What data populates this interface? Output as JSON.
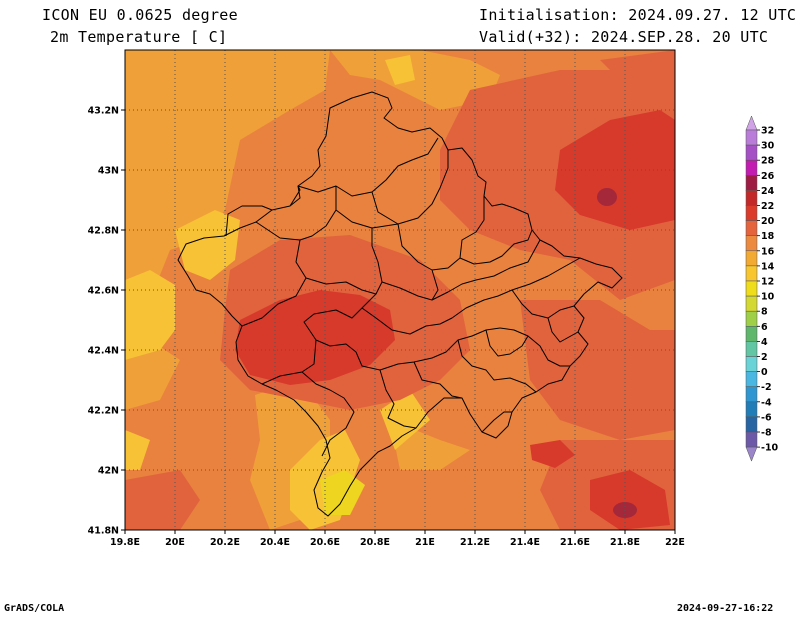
{
  "header": {
    "model": "ICON EU 0.0625 degree",
    "variable": "2m Temperature [ C]",
    "initialisation": "Initialisation: 2024.09.27. 12 UTC",
    "valid": "Valid(+32): 2024.SEP.28. 20 UTC"
  },
  "footer": {
    "left": "GrADS/COLA",
    "right": "2024-09-27-16:22"
  },
  "axes": {
    "x_ticks": [
      "19.8E",
      "20E",
      "20.2E",
      "20.4E",
      "20.6E",
      "20.8E",
      "21E",
      "21.2E",
      "21.4E",
      "21.6E",
      "21.8E",
      "22E"
    ],
    "y_ticks": [
      "43.2N",
      "43N",
      "42.8N",
      "42.6N",
      "42.4N",
      "42.2N",
      "42N",
      "41.8N"
    ]
  },
  "colorbar": {
    "labels": [
      "32",
      "30",
      "28",
      "26",
      "24",
      "22",
      "20",
      "18",
      "16",
      "14",
      "12",
      "10",
      "8",
      "6",
      "4",
      "2",
      "0",
      "-2",
      "-4",
      "-6",
      "-8",
      "-10"
    ],
    "colors": [
      "#cfa3e6",
      "#b97cd8",
      "#a650c6",
      "#c21cb0",
      "#9f1c44",
      "#c42929",
      "#db3b2b",
      "#e5643e",
      "#ec8a40",
      "#f3aa33",
      "#f8c730",
      "#efdd1b",
      "#d4d832",
      "#9ecf46",
      "#5fb76c",
      "#62c6a5",
      "#6ad3d8",
      "#4ab7e2",
      "#2f96d1",
      "#217db8",
      "#2764a4",
      "#6c5aa8",
      "#9b86c9"
    ]
  },
  "colors": {
    "background": "#e9823f",
    "border": "#000000",
    "grid": "#444444"
  }
}
